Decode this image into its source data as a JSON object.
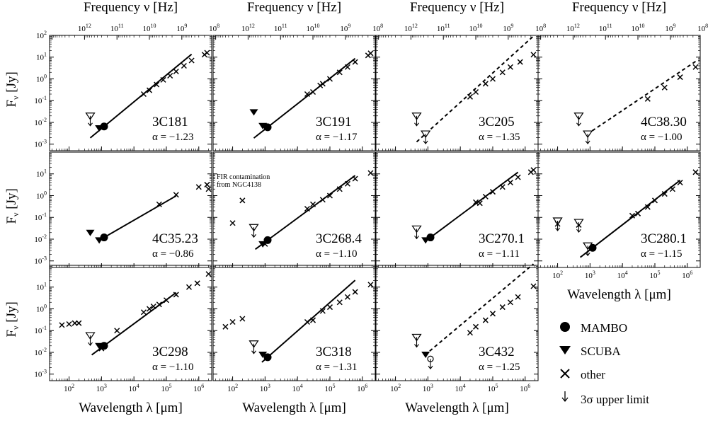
{
  "figure": {
    "top_axis_label": "Frequency ν  [Hz]",
    "bottom_axis_label": "Wavelength λ  [μm]",
    "y_axis_label": "F",
    "y_axis_sub": "ν",
    "y_axis_unit": " [Jy]",
    "y_ticks": [
      {
        "exp": -3,
        "label": "10",
        "sup": "-3"
      },
      {
        "exp": -2,
        "label": "10",
        "sup": "-2"
      },
      {
        "exp": -1,
        "label": "10",
        "sup": "-1"
      },
      {
        "exp": 0,
        "label": "10",
        "sup": "0"
      },
      {
        "exp": 1,
        "label": "10",
        "sup": "1"
      },
      {
        "exp": 2,
        "label": "10",
        "sup": "2"
      }
    ],
    "x_ticks": [
      {
        "exp": 2,
        "label": "10",
        "sup": "2"
      },
      {
        "exp": 3,
        "label": "10",
        "sup": "3"
      },
      {
        "exp": 4,
        "label": "10",
        "sup": "4"
      },
      {
        "exp": 5,
        "label": "10",
        "sup": "5"
      },
      {
        "exp": 6,
        "label": "10",
        "sup": "6"
      }
    ],
    "freq_ticks": [
      {
        "exp": 12,
        "label": "10",
        "sup": "12"
      },
      {
        "exp": 11,
        "label": "10",
        "sup": "11"
      },
      {
        "exp": 10,
        "label": "10",
        "sup": "10"
      },
      {
        "exp": 9,
        "label": "10",
        "sup": "9"
      },
      {
        "exp": 8,
        "label": "10",
        "sup": "8"
      }
    ],
    "note": [
      "FIR contamination",
      "from NGC4138"
    ]
  },
  "legend": {
    "mambo": "MAMBO",
    "scuba": "SCUBA",
    "other": "other",
    "limit": "3σ upper limit"
  },
  "chart_data": {
    "type": "scatter",
    "x_scale": "log",
    "y_scale": "log",
    "xlabel": "Wavelength λ  [μm]",
    "x2label": "Frequency ν  [Hz]",
    "ylabel": "Fν [Jy]",
    "xlim": [
      25,
      2500000
    ],
    "ylim": [
      0.0005,
      100
    ],
    "panels": [
      {
        "name": "3C181",
        "alpha": "α = −1.23",
        "fit": "solid",
        "fit_x": [
          450,
          600000
        ],
        "mambo": [
          [
            1200,
            0.0065
          ]
        ],
        "scuba": [
          [
            850,
            0.0055
          ]
        ],
        "upper_limits": [
          [
            450,
            0.02
          ]
        ],
        "other": [
          [
            20000,
            0.2
          ],
          [
            30000,
            0.3
          ],
          [
            50000,
            0.55
          ],
          [
            80000,
            0.9
          ],
          [
            130000,
            1.4
          ],
          [
            200000,
            2.2
          ],
          [
            350000,
            4
          ],
          [
            600000,
            7
          ],
          [
            1500000,
            13
          ],
          [
            1800000,
            16
          ]
        ]
      },
      {
        "name": "3C191",
        "alpha": "α = −1.17",
        "fit": "solid",
        "fit_x": [
          450,
          600000
        ],
        "mambo": [
          [
            1200,
            0.006
          ]
        ],
        "scuba": [
          [
            450,
            0.03
          ],
          [
            850,
            0.007
          ]
        ],
        "upper_limits": [],
        "other": [
          [
            20000,
            0.2
          ],
          [
            30000,
            0.25
          ],
          [
            50000,
            0.5
          ],
          [
            60000,
            0.6
          ],
          [
            100000,
            1
          ],
          [
            200000,
            2
          ],
          [
            350000,
            3.5
          ],
          [
            600000,
            6
          ],
          [
            1500000,
            12
          ],
          [
            1800000,
            15
          ]
        ]
      },
      {
        "name": "3C205",
        "alpha": "α = −1.35",
        "fit": "dashed",
        "fit_x": [
          450,
          1800000
        ],
        "mambo": [],
        "scuba": [],
        "upper_limits": [
          [
            450,
            0.02
          ],
          [
            850,
            0.003
          ]
        ],
        "other": [
          [
            20000,
            0.15
          ],
          [
            30000,
            0.25
          ],
          [
            60000,
            0.6
          ],
          [
            100000,
            1
          ],
          [
            200000,
            2
          ],
          [
            350000,
            3.5
          ],
          [
            700000,
            6
          ],
          [
            1800000,
            13
          ]
        ]
      },
      {
        "name": "4C38.30",
        "alpha": "α = −1.00",
        "fit": "dashed",
        "fit_x": [
          800,
          1800000
        ],
        "mambo": [],
        "scuba": [],
        "upper_limits": [
          [
            450,
            0.02
          ],
          [
            850,
            0.003
          ]
        ],
        "other": [
          [
            60000,
            0.12
          ],
          [
            200000,
            0.4
          ],
          [
            600000,
            1.2
          ],
          [
            1800000,
            3.5
          ]
        ]
      },
      {
        "name": "4C35.23",
        "alpha": "α = −0.86",
        "fit": "solid",
        "fit_x": [
          800,
          200000
        ],
        "mambo": [
          [
            1200,
            0.012
          ]
        ],
        "scuba": [
          [
            450,
            0.02
          ],
          [
            850,
            0.009
          ]
        ],
        "upper_limits": [],
        "other": [
          [
            60000,
            0.4
          ],
          [
            200000,
            1.1
          ],
          [
            1000000,
            2.5
          ],
          [
            1800000,
            3.2
          ],
          [
            2000000,
            2
          ]
        ]
      },
      {
        "name": "3C268.4",
        "alpha": "α = −1.10",
        "fit": "solid",
        "fit_x": [
          500,
          600000
        ],
        "mambo": [
          [
            1200,
            0.009
          ]
        ],
        "scuba": [
          [
            850,
            0.006
          ]
        ],
        "upper_limits": [
          [
            450,
            0.035
          ]
        ],
        "other": [
          [
            100,
            0.055
          ],
          [
            200,
            0.6
          ],
          [
            1000,
            0.006
          ],
          [
            20000,
            0.25
          ],
          [
            30000,
            0.4
          ],
          [
            60000,
            0.65
          ],
          [
            100000,
            1
          ],
          [
            200000,
            2
          ],
          [
            350000,
            3.5
          ],
          [
            600000,
            6
          ],
          [
            1800000,
            11
          ]
        ]
      },
      {
        "name": "3C270.1",
        "alpha": "α = −1.11",
        "fit": "solid",
        "fit_x": [
          800,
          600000
        ],
        "mambo": [
          [
            1200,
            0.012
          ]
        ],
        "scuba": [
          [
            850,
            0.009
          ]
        ],
        "upper_limits": [
          [
            450,
            0.03
          ]
        ],
        "other": [
          [
            30000,
            0.5
          ],
          [
            40000,
            0.45
          ],
          [
            60000,
            0.9
          ],
          [
            100000,
            1.5
          ],
          [
            200000,
            2.5
          ],
          [
            350000,
            4
          ],
          [
            600000,
            7
          ],
          [
            1500000,
            12
          ],
          [
            1800000,
            15
          ]
        ]
      },
      {
        "name": "3C280.1",
        "alpha": "α = −1.15",
        "fit": "solid",
        "fit_x": [
          500,
          600000
        ],
        "mambo": [
          [
            1200,
            0.004
          ]
        ],
        "scuba": [],
        "upper_limits": [
          [
            100,
            0.07
          ],
          [
            450,
            0.06
          ],
          [
            850,
            0.005
          ]
        ],
        "other": [
          [
            100,
            0.05
          ],
          [
            450,
            0.045
          ],
          [
            20000,
            0.12
          ],
          [
            30000,
            0.15
          ],
          [
            60000,
            0.3
          ],
          [
            100000,
            0.6
          ],
          [
            200000,
            1.2
          ],
          [
            350000,
            2
          ],
          [
            600000,
            4
          ],
          [
            1800000,
            12
          ]
        ]
      },
      {
        "name": "3C298",
        "alpha": "α = −1.10",
        "fit": "solid",
        "fit_x": [
          500,
          200000
        ],
        "mambo": [
          [
            1200,
            0.02
          ]
        ],
        "scuba": [
          [
            850,
            0.02
          ]
        ],
        "upper_limits": [
          [
            450,
            0.06
          ]
        ],
        "other": [
          [
            60,
            0.18
          ],
          [
            100,
            0.2
          ],
          [
            150,
            0.22
          ],
          [
            200,
            0.22
          ],
          [
            1000,
            0.015
          ],
          [
            3000,
            0.1
          ],
          [
            20000,
            0.7
          ],
          [
            30000,
            1
          ],
          [
            40000,
            1.3
          ],
          [
            60000,
            1.6
          ],
          [
            100000,
            2.5
          ],
          [
            200000,
            4.5
          ],
          [
            500000,
            10
          ],
          [
            900000,
            15
          ],
          [
            2000000,
            40
          ]
        ]
      },
      {
        "name": "3C318",
        "alpha": "α = −1.31",
        "fit": "solid",
        "fit_x": [
          800,
          600000
        ],
        "mambo": [
          [
            1200,
            0.006
          ]
        ],
        "scuba": [
          [
            850,
            0.008
          ]
        ],
        "upper_limits": [
          [
            450,
            0.025
          ]
        ],
        "other": [
          [
            60,
            0.15
          ],
          [
            100,
            0.25
          ],
          [
            200,
            0.35
          ],
          [
            20000,
            0.25
          ],
          [
            30000,
            0.3
          ],
          [
            60000,
            0.8
          ],
          [
            100000,
            1.2
          ],
          [
            200000,
            2
          ],
          [
            350000,
            3.5
          ],
          [
            600000,
            6
          ],
          [
            1800000,
            13
          ]
        ]
      },
      {
        "name": "3C432",
        "alpha": "α = −1.25",
        "fit": "dashed",
        "fit_x": [
          800,
          1800000
        ],
        "mambo": [],
        "scuba": [
          [
            850,
            0.008
          ]
        ],
        "upper_limits": [
          [
            450,
            0.05
          ],
          [
            1200,
            0.005
          ]
        ],
        "other": [
          [
            20000,
            0.08
          ],
          [
            30000,
            0.15
          ],
          [
            60000,
            0.3
          ],
          [
            100000,
            0.6
          ],
          [
            200000,
            1.2
          ],
          [
            350000,
            2
          ],
          [
            600000,
            3.5
          ],
          [
            1800000,
            11
          ]
        ]
      }
    ]
  }
}
